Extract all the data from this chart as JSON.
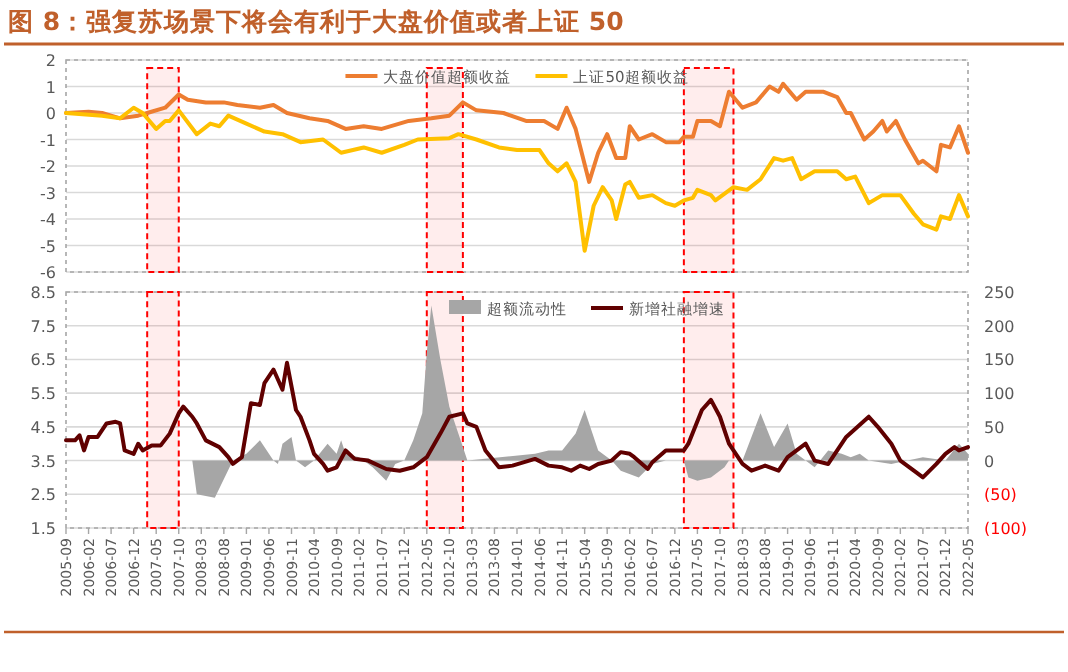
{
  "chart_data": [
    {
      "type": "line",
      "title": "图 8：强复苏场景下将会有利于大盘价值或者上证 50",
      "xlim": [
        "2005-09",
        "2022-05"
      ],
      "ylim": [
        -6,
        2
      ],
      "yticks": [
        -6,
        -5,
        -4,
        -3,
        -2,
        -1,
        0,
        1,
        2
      ],
      "tick_labels": "y",
      "grid": "y",
      "legend": "top",
      "bands": [
        {
          "axis": "x",
          "from": "2007-03",
          "to": "2007-10",
          "color": "#ff0000"
        },
        {
          "axis": "x",
          "from": "2012-05",
          "to": "2013-01",
          "color": "#ff0000"
        },
        {
          "axis": "x",
          "from": "2017-02",
          "to": "2018-01",
          "color": "#ff0000"
        }
      ],
      "series": [
        {
          "name": "大盘价值超额收益",
          "color": "#ed7d31",
          "x": [
            "2005-09",
            "2006-02",
            "2006-05",
            "2006-09",
            "2007-01",
            "2007-03",
            "2007-07",
            "2007-10",
            "2007-12",
            "2008-04",
            "2008-08",
            "2008-11",
            "2009-04",
            "2009-07",
            "2009-10",
            "2010-03",
            "2010-07",
            "2010-11",
            "2011-03",
            "2011-07",
            "2012-01",
            "2012-06",
            "2012-10",
            "2013-01",
            "2013-04",
            "2013-10",
            "2014-03",
            "2014-07",
            "2014-10",
            "2014-12",
            "2015-02",
            "2015-05",
            "2015-07",
            "2015-09",
            "2015-11",
            "2016-01",
            "2016-02",
            "2016-04",
            "2016-07",
            "2016-10",
            "2017-01",
            "2017-02",
            "2017-04",
            "2017-05",
            "2017-08",
            "2017-10",
            "2017-12",
            "2018-03",
            "2018-06",
            "2018-09",
            "2018-11",
            "2018-12",
            "2019-03",
            "2019-05",
            "2019-09",
            "2019-12",
            "2020-02",
            "2020-03",
            "2020-06",
            "2020-08",
            "2020-10",
            "2020-11",
            "2021-01",
            "2021-03",
            "2021-06",
            "2021-07",
            "2021-10",
            "2021-11",
            "2022-01",
            "2022-03",
            "2022-05"
          ],
          "values": [
            0.0,
            0.05,
            0.0,
            -0.2,
            -0.1,
            0.0,
            0.2,
            0.7,
            0.5,
            0.4,
            0.4,
            0.3,
            0.2,
            0.3,
            0.0,
            -0.2,
            -0.3,
            -0.6,
            -0.5,
            -0.6,
            -0.3,
            -0.2,
            -0.1,
            0.4,
            0.1,
            0.0,
            -0.3,
            -0.3,
            -0.6,
            0.2,
            -0.6,
            -2.6,
            -1.5,
            -0.8,
            -1.7,
            -1.7,
            -0.5,
            -1.0,
            -0.8,
            -1.1,
            -1.1,
            -0.9,
            -0.9,
            -0.3,
            -0.3,
            -0.5,
            0.8,
            0.2,
            0.4,
            1.0,
            0.8,
            1.1,
            0.5,
            0.8,
            0.8,
            0.6,
            0.0,
            0.0,
            -1.0,
            -0.7,
            -0.3,
            -0.7,
            -0.3,
            -1.0,
            -1.9,
            -1.8,
            -2.2,
            -1.2,
            -1.3,
            -0.5,
            -1.5
          ]
        },
        {
          "name": "上证50超额收益",
          "color": "#ffc000",
          "x": [
            "2005-09",
            "2006-05",
            "2006-09",
            "2006-12",
            "2007-02",
            "2007-05",
            "2007-07",
            "2007-08",
            "2007-10",
            "2008-02",
            "2008-05",
            "2008-07",
            "2008-09",
            "2009-01",
            "2009-05",
            "2009-09",
            "2010-01",
            "2010-06",
            "2010-10",
            "2011-03",
            "2011-07",
            "2011-12",
            "2012-03",
            "2012-10",
            "2012-12",
            "2013-04",
            "2013-09",
            "2014-01",
            "2014-06",
            "2014-08",
            "2014-10",
            "2014-12",
            "2015-02",
            "2015-04",
            "2015-06",
            "2015-08",
            "2015-10",
            "2015-11",
            "2016-01",
            "2016-02",
            "2016-04",
            "2016-07",
            "2016-10",
            "2016-12",
            "2017-02",
            "2017-04",
            "2017-05",
            "2017-08",
            "2017-09",
            "2018-01",
            "2018-04",
            "2018-07",
            "2018-10",
            "2018-12",
            "2019-02",
            "2019-04",
            "2019-07",
            "2019-12",
            "2020-02",
            "2020-04",
            "2020-07",
            "2020-10",
            "2021-02",
            "2021-05",
            "2021-07",
            "2021-10",
            "2021-11",
            "2022-01",
            "2022-03",
            "2022-05"
          ],
          "values": [
            0.0,
            -0.1,
            -0.2,
            0.2,
            0.0,
            -0.6,
            -0.3,
            -0.3,
            0.1,
            -0.8,
            -0.4,
            -0.5,
            -0.1,
            -0.4,
            -0.7,
            -0.8,
            -1.1,
            -1.0,
            -1.5,
            -1.3,
            -1.5,
            -1.2,
            -1.0,
            -0.95,
            -0.8,
            -1.0,
            -1.3,
            -1.4,
            -1.4,
            -1.9,
            -2.2,
            -1.9,
            -2.6,
            -5.2,
            -3.5,
            -2.8,
            -3.3,
            -4.0,
            -2.7,
            -2.6,
            -3.2,
            -3.1,
            -3.4,
            -3.5,
            -3.3,
            -3.2,
            -2.9,
            -3.1,
            -3.3,
            -2.8,
            -2.9,
            -2.5,
            -1.7,
            -1.8,
            -1.7,
            -2.5,
            -2.2,
            -2.2,
            -2.5,
            -2.4,
            -3.4,
            -3.1,
            -3.1,
            -3.8,
            -4.2,
            -4.4,
            -3.9,
            -4.0,
            -3.1,
            -3.9
          ]
        }
      ]
    },
    {
      "type": "line",
      "xlim": [
        "2005-09",
        "2022-05"
      ],
      "xticks": [
        "2005-09",
        "2006-02",
        "2006-07",
        "2006-12",
        "2007-05",
        "2007-10",
        "2008-03",
        "2008-08",
        "2009-01",
        "2009-06",
        "2009-11",
        "2010-04",
        "2010-09",
        "2011-02",
        "2011-07",
        "2011-12",
        "2012-05",
        "2012-10",
        "2013-03",
        "2013-08",
        "2014-01",
        "2014-06",
        "2014-11",
        "2015-04",
        "2015-09",
        "2016-02",
        "2016-07",
        "2016-12",
        "2017-05",
        "2017-10",
        "2018-03",
        "2018-08",
        "2019-01",
        "2019-06",
        "2019-11",
        "2020-04",
        "2020-09",
        "2021-02",
        "2021-07",
        "2021-12",
        "2022-05"
      ],
      "ylim": [
        1.5,
        8.5
      ],
      "yticks": [
        1.5,
        2.5,
        3.5,
        4.5,
        5.5,
        6.5,
        7.5,
        8.5
      ],
      "y2lim": [
        -100,
        250
      ],
      "y2ticks": [
        {
          "value": -100,
          "label": "(100)"
        },
        {
          "value": -50,
          "label": "(50)"
        },
        0,
        50,
        100,
        150,
        200,
        250
      ],
      "grid": "y",
      "legend": "top",
      "bands": [
        {
          "axis": "x",
          "from": "2007-03",
          "to": "2007-10",
          "color": "#ff0000"
        },
        {
          "axis": "x",
          "from": "2012-05",
          "to": "2013-01",
          "color": "#ff0000"
        },
        {
          "axis": "x",
          "from": "2017-02",
          "to": "2018-01",
          "color": "#ff0000"
        }
      ],
      "series": [
        {
          "name": "超额流动性",
          "type": "area",
          "axis": "y2",
          "color": "#a6a6a6",
          "x": [
            "2008-01",
            "2008-02",
            "2008-06",
            "2008-10",
            "2009-01",
            "2009-04",
            "2009-07",
            "2009-08",
            "2009-09",
            "2009-11",
            "2009-12",
            "2010-02",
            "2010-04",
            "2010-07",
            "2010-09",
            "2010-10",
            "2010-11",
            "2011-02",
            "2011-05",
            "2011-08",
            "2011-10",
            "2011-12",
            "2012-02",
            "2012-04",
            "2012-05",
            "2012-06",
            "2012-08",
            "2012-10",
            "2013-01",
            "2013-02",
            "2014-05",
            "2014-08",
            "2014-11",
            "2015-02",
            "2015-04",
            "2015-07",
            "2015-10",
            "2015-12",
            "2016-04",
            "2016-07",
            "2016-10",
            "2017-02",
            "2017-03",
            "2017-05",
            "2017-08",
            "2017-11",
            "2017-12",
            "2018-03",
            "2018-07",
            "2018-10",
            "2019-01",
            "2019-03",
            "2019-05",
            "2019-07",
            "2019-10",
            "2020-01",
            "2020-03",
            "2020-05",
            "2020-07",
            "2020-12",
            "2021-07",
            "2021-12",
            "2022-03",
            "2022-05"
          ],
          "values": [
            0,
            -50,
            -55,
            0,
            10,
            30,
            0,
            -5,
            25,
            35,
            0,
            -10,
            0,
            25,
            10,
            30,
            10,
            5,
            -10,
            -30,
            -5,
            0,
            30,
            70,
            160,
            230,
            150,
            80,
            20,
            0,
            10,
            15,
            15,
            40,
            75,
            15,
            0,
            -15,
            -25,
            -5,
            0,
            0,
            -25,
            -30,
            -25,
            -10,
            0,
            0,
            70,
            20,
            55,
            10,
            0,
            -10,
            15,
            10,
            5,
            10,
            0,
            -5,
            5,
            0,
            25,
            10
          ]
        },
        {
          "name": "新增社融增速",
          "color": "#600000",
          "x": [
            "2005-09",
            "2005-11",
            "2005-12",
            "2006-01",
            "2006-02",
            "2006-04",
            "2006-06",
            "2006-08",
            "2006-09",
            "2006-10",
            "2006-12",
            "2007-01",
            "2007-02",
            "2007-04",
            "2007-06",
            "2007-08",
            "2007-10",
            "2007-11",
            "2008-01",
            "2008-02",
            "2008-04",
            "2008-07",
            "2008-09",
            "2008-10",
            "2008-12",
            "2009-02",
            "2009-04",
            "2009-05",
            "2009-07",
            "2009-09",
            "2009-10",
            "2009-12",
            "2010-01",
            "2010-03",
            "2010-04",
            "2010-06",
            "2010-07",
            "2010-09",
            "2010-11",
            "2011-01",
            "2011-04",
            "2011-08",
            "2011-11",
            "2012-02",
            "2012-05",
            "2012-08",
            "2012-10",
            "2013-01",
            "2013-02",
            "2013-04",
            "2013-06",
            "2013-09",
            "2013-12",
            "2014-05",
            "2014-08",
            "2014-11",
            "2015-01",
            "2015-03",
            "2015-05",
            "2015-07",
            "2015-10",
            "2015-12",
            "2016-02",
            "2016-03",
            "2016-06",
            "2016-07",
            "2016-10",
            "2017-02",
            "2017-03",
            "2017-06",
            "2017-08",
            "2017-10",
            "2017-12",
            "2018-03",
            "2018-05",
            "2018-08",
            "2018-11",
            "2019-01",
            "2019-03",
            "2019-05",
            "2019-07",
            "2019-10",
            "2020-02",
            "2020-07",
            "2020-09",
            "2020-12",
            "2021-02",
            "2021-05",
            "2021-07",
            "2021-10",
            "2021-12",
            "2022-02",
            "2022-03",
            "2022-05"
          ],
          "values": [
            4.1,
            4.1,
            4.25,
            3.8,
            4.2,
            4.2,
            4.6,
            4.65,
            4.6,
            3.8,
            3.7,
            4.0,
            3.8,
            3.95,
            3.95,
            4.3,
            4.9,
            5.1,
            4.8,
            4.6,
            4.1,
            3.9,
            3.6,
            3.4,
            3.6,
            5.2,
            5.15,
            5.8,
            6.2,
            5.6,
            6.4,
            5.0,
            4.8,
            4.1,
            3.7,
            3.4,
            3.2,
            3.3,
            3.8,
            3.55,
            3.5,
            3.25,
            3.2,
            3.3,
            3.6,
            4.3,
            4.8,
            4.9,
            4.6,
            4.5,
            3.8,
            3.3,
            3.35,
            3.55,
            3.35,
            3.3,
            3.2,
            3.35,
            3.25,
            3.4,
            3.5,
            3.75,
            3.7,
            3.6,
            3.25,
            3.45,
            3.8,
            3.8,
            4.0,
            5.0,
            5.3,
            4.8,
            4.0,
            3.4,
            3.2,
            3.35,
            3.2,
            3.6,
            3.8,
            4.0,
            3.5,
            3.4,
            4.2,
            4.8,
            4.5,
            4.0,
            3.5,
            3.2,
            3.0,
            3.4,
            3.7,
            3.9,
            3.8,
            3.9
          ]
        }
      ]
    }
  ]
}
